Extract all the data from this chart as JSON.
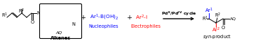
{
  "bg_color": "#ffffff",
  "blue": "#0000FF",
  "red": "#FF0000",
  "black": "#000000",
  "figsize": [
    3.78,
    0.62
  ],
  "dpi": 100,
  "alkene_label": "Alkenes",
  "nucleophile_label": "Nucleophiles",
  "electrophile_label": "Electrophiles",
  "product_label": "syn-product",
  "arrow_label": "Pd$^{II}$/Pd$^{IV}$ cycle"
}
